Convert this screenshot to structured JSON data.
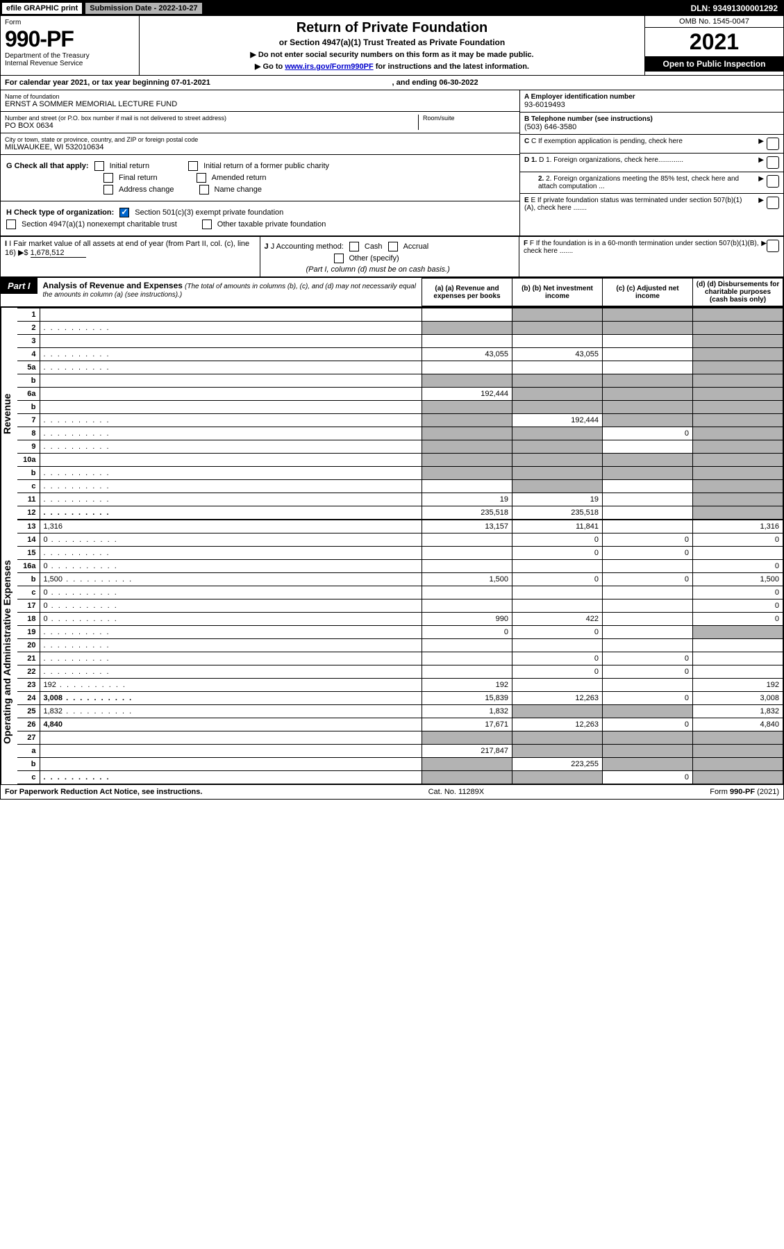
{
  "top": {
    "efile": "efile GRAPHIC print",
    "submission": "Submission Date - 2022-10-27",
    "dln": "DLN: 93491300001292"
  },
  "header": {
    "form_label": "Form",
    "form_no": "990-PF",
    "dept": "Department of the Treasury",
    "irs": "Internal Revenue Service",
    "title": "Return of Private Foundation",
    "subtitle": "or Section 4947(a)(1) Trust Treated as Private Foundation",
    "instr1": "▶ Do not enter social security numbers on this form as it may be made public.",
    "instr2_pre": "▶ Go to ",
    "instr2_link": "www.irs.gov/Form990PF",
    "instr2_post": " for instructions and the latest information.",
    "omb": "OMB No. 1545-0047",
    "year": "2021",
    "open": "Open to Public Inspection"
  },
  "calendar": {
    "text": "For calendar year 2021, or tax year beginning 07-01-2021",
    "ending": ", and ending 06-30-2022"
  },
  "info_left": {
    "name_label": "Name of foundation",
    "name": "ERNST A SOMMER MEMORIAL LECTURE FUND",
    "addr_label": "Number and street (or P.O. box number if mail is not delivered to street address)",
    "addr": "PO BOX 0634",
    "room_label": "Room/suite",
    "city_label": "City or town, state or province, country, and ZIP or foreign postal code",
    "city": "MILWAUKEE, WI  532010634"
  },
  "info_right": {
    "a_label": "A Employer identification number",
    "a_val": "93-6019493",
    "b_label": "B Telephone number (see instructions)",
    "b_val": "(503) 646-3580",
    "c_label": "C If exemption application is pending, check here",
    "d1_label": "D 1. Foreign organizations, check here.............",
    "d2_label": "2. Foreign organizations meeting the 85% test, check here and attach computation ...",
    "e_label": "E  If private foundation status was terminated under section 507(b)(1)(A), check here .......",
    "f_label": "F  If the foundation is in a 60-month termination under section 507(b)(1)(B), check here ......."
  },
  "g": {
    "label": "G Check all that apply:",
    "opts": [
      "Initial return",
      "Final return",
      "Address change",
      "Initial return of a former public charity",
      "Amended return",
      "Name change"
    ]
  },
  "h": {
    "label": "H Check type of organization:",
    "opt1": "Section 501(c)(3) exempt private foundation",
    "opt2": "Section 4947(a)(1) nonexempt charitable trust",
    "opt3": "Other taxable private foundation"
  },
  "i": {
    "label": "I Fair market value of all assets at end of year (from Part II, col. (c), line 16)",
    "arrow": "▶$",
    "val": "1,678,512"
  },
  "j": {
    "label": "J Accounting method:",
    "cash": "Cash",
    "accrual": "Accrual",
    "other": "Other (specify)",
    "note": "(Part I, column (d) must be on cash basis.)"
  },
  "part1": {
    "label": "Part I",
    "title": "Analysis of Revenue and Expenses",
    "sub": "(The total of amounts in columns (b), (c), and (d) may not necessarily equal the amounts in column (a) (see instructions).)",
    "col_a": "(a) Revenue and expenses per books",
    "col_b": "(b) Net investment income",
    "col_c": "(c) Adjusted net income",
    "col_d": "(d) Disbursements for charitable purposes (cash basis only)"
  },
  "side_labels": {
    "rev": "Revenue",
    "exp": "Operating and Administrative Expenses"
  },
  "rows": [
    {
      "n": "1",
      "d": "",
      "a": "",
      "b": "",
      "b_s": true,
      "c": "",
      "c_s": true,
      "d_s": true
    },
    {
      "n": "2",
      "d": "",
      "dots": true,
      "a": "",
      "a_s": true,
      "b": "",
      "b_s": true,
      "c": "",
      "c_s": true,
      "d_s": true
    },
    {
      "n": "3",
      "d": "",
      "a": "",
      "b": "",
      "c": "",
      "d_s": true
    },
    {
      "n": "4",
      "d": "",
      "dots": true,
      "a": "43,055",
      "b": "43,055",
      "c": "",
      "d_s": true
    },
    {
      "n": "5a",
      "d": "",
      "dots": true,
      "a": "",
      "b": "",
      "c": "",
      "d_s": true
    },
    {
      "n": "b",
      "d": "",
      "a": "",
      "a_s": true,
      "b": "",
      "b_s": true,
      "c": "",
      "c_s": true,
      "d_s": true
    },
    {
      "n": "6a",
      "d": "",
      "a": "192,444",
      "b": "",
      "b_s": true,
      "c": "",
      "c_s": true,
      "d_s": true
    },
    {
      "n": "b",
      "d": "",
      "a": "",
      "a_s": true,
      "b": "",
      "b_s": true,
      "c": "",
      "c_s": true,
      "d_s": true
    },
    {
      "n": "7",
      "d": "",
      "dots": true,
      "a": "",
      "a_s": true,
      "b": "192,444",
      "c": "",
      "c_s": true,
      "d_s": true
    },
    {
      "n": "8",
      "d": "",
      "dots": true,
      "a": "",
      "a_s": true,
      "b": "",
      "b_s": true,
      "c": "0",
      "d_s": true
    },
    {
      "n": "9",
      "d": "",
      "dots": true,
      "a": "",
      "a_s": true,
      "b": "",
      "b_s": true,
      "c": "",
      "d_s": true
    },
    {
      "n": "10a",
      "d": "",
      "a": "",
      "a_s": true,
      "b": "",
      "b_s": true,
      "c": "",
      "c_s": true,
      "d_s": true
    },
    {
      "n": "b",
      "d": "",
      "dots": true,
      "a": "",
      "a_s": true,
      "b": "",
      "b_s": true,
      "c": "",
      "c_s": true,
      "d_s": true
    },
    {
      "n": "c",
      "d": "",
      "dots": true,
      "a": "",
      "b": "",
      "b_s": true,
      "c": "",
      "d_s": true
    },
    {
      "n": "11",
      "d": "",
      "dots": true,
      "a": "19",
      "b": "19",
      "c": "",
      "d_s": true
    },
    {
      "n": "12",
      "d": "",
      "dots": true,
      "bold": true,
      "a": "235,518",
      "b": "235,518",
      "c": "",
      "d_s": true
    },
    {
      "n": "13",
      "d": "1,316",
      "a": "13,157",
      "b": "11,841",
      "c": ""
    },
    {
      "n": "14",
      "d": "0",
      "dots": true,
      "a": "",
      "b": "0",
      "c": "0"
    },
    {
      "n": "15",
      "d": "",
      "dots": true,
      "a": "",
      "b": "0",
      "c": "0"
    },
    {
      "n": "16a",
      "d": "0",
      "dots": true,
      "a": "",
      "b": "",
      "c": ""
    },
    {
      "n": "b",
      "d": "1,500",
      "dots": true,
      "a": "1,500",
      "b": "0",
      "c": "0"
    },
    {
      "n": "c",
      "d": "0",
      "dots": true,
      "a": "",
      "b": "",
      "c": ""
    },
    {
      "n": "17",
      "d": "0",
      "dots": true,
      "a": "",
      "b": "",
      "c": ""
    },
    {
      "n": "18",
      "d": "0",
      "dots": true,
      "a": "990",
      "b": "422",
      "c": ""
    },
    {
      "n": "19",
      "d": "",
      "dots": true,
      "a": "0",
      "b": "0",
      "c": "",
      "d_s": true
    },
    {
      "n": "20",
      "d": "",
      "dots": true,
      "a": "",
      "b": "",
      "c": ""
    },
    {
      "n": "21",
      "d": "",
      "dots": true,
      "a": "",
      "b": "0",
      "c": "0"
    },
    {
      "n": "22",
      "d": "",
      "dots": true,
      "a": "",
      "b": "0",
      "c": "0"
    },
    {
      "n": "23",
      "d": "192",
      "dots": true,
      "a": "192",
      "b": "",
      "c": ""
    },
    {
      "n": "24",
      "d": "3,008",
      "dots": true,
      "bold": true,
      "a": "15,839",
      "b": "12,263",
      "c": "0"
    },
    {
      "n": "25",
      "d": "1,832",
      "dots": true,
      "a": "1,832",
      "b": "",
      "b_s": true,
      "c": "",
      "c_s": true
    },
    {
      "n": "26",
      "d": "4,840",
      "bold": true,
      "a": "17,671",
      "b": "12,263",
      "c": "0"
    },
    {
      "n": "27",
      "d": "",
      "a": "",
      "a_s": true,
      "b": "",
      "b_s": true,
      "c": "",
      "c_s": true,
      "d_s": true
    },
    {
      "n": "a",
      "d": "",
      "bold": true,
      "a": "217,847",
      "b": "",
      "b_s": true,
      "c": "",
      "c_s": true,
      "d_s": true
    },
    {
      "n": "b",
      "d": "",
      "bold": true,
      "a": "",
      "a_s": true,
      "b": "223,255",
      "c": "",
      "c_s": true,
      "d_s": true
    },
    {
      "n": "c",
      "d": "",
      "dots": true,
      "bold": true,
      "a": "",
      "a_s": true,
      "b": "",
      "b_s": true,
      "c": "0",
      "d_s": true
    }
  ],
  "footer": {
    "left": "For Paperwork Reduction Act Notice, see instructions.",
    "mid": "Cat. No. 11289X",
    "right": "Form 990-PF (2021)"
  }
}
